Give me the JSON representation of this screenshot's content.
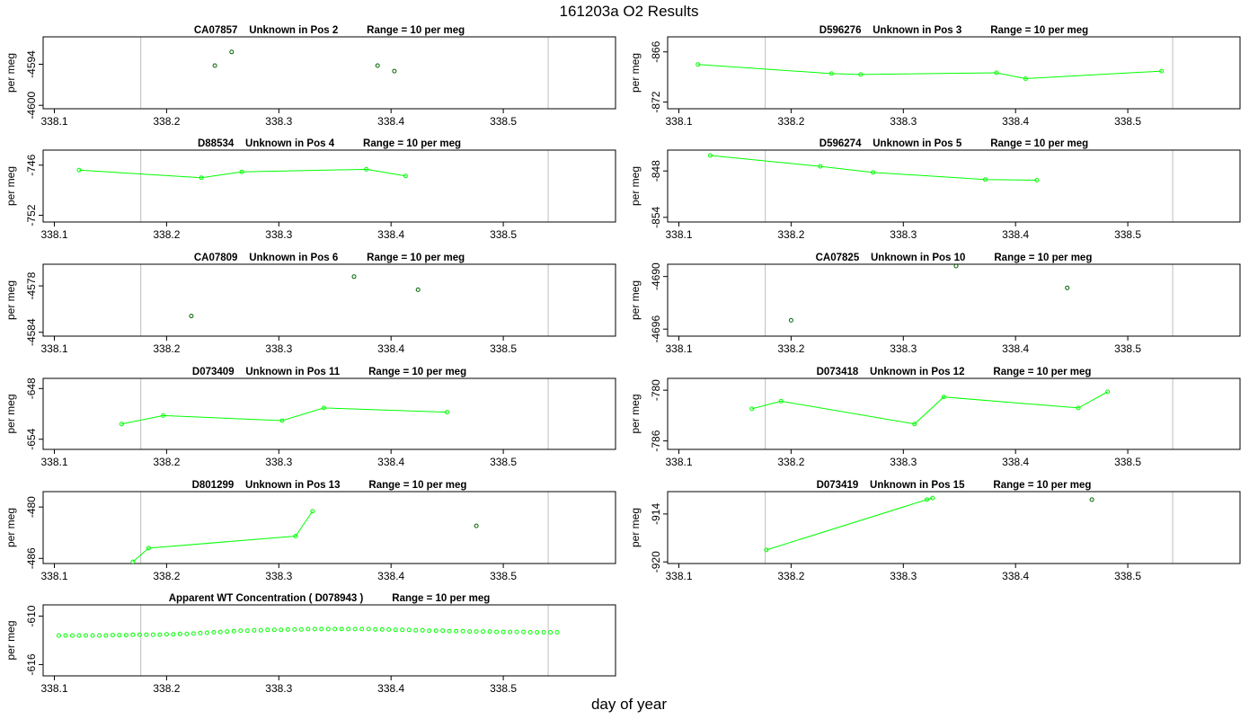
{
  "title": "161203a  O2 Results",
  "xlabel": "day of year",
  "colors": {
    "line": "#00ff00",
    "point_outlier": "#006400",
    "vline": "#bebebe",
    "frame": "#000000"
  },
  "chart_data": [
    {
      "type": "scatter",
      "title": "CA07857    Unknown in Pos 2          Range = 10 per meg",
      "ylabel": "per meg",
      "xlim": [
        338.09,
        338.6
      ],
      "ylim": [
        -4600.5,
        -4590
      ],
      "xticks": [
        "338.1",
        "338.2",
        "338.3",
        "338.4",
        "338.5"
      ],
      "yticks": [
        "-4594",
        "-4600"
      ],
      "vlines": [
        338.177,
        338.54
      ],
      "connected": false,
      "point_color": "dark",
      "x": [
        338.243,
        338.258,
        338.388,
        338.403
      ],
      "y": [
        -4594.2,
        -4592.2,
        -4594.2,
        -4595.0
      ]
    },
    {
      "type": "line",
      "title": "D596276    Unknown in Pos 3          Range = 10 per meg",
      "ylabel": "per meg",
      "xlim": [
        338.09,
        338.6
      ],
      "ylim": [
        -872.8,
        -864.2
      ],
      "xticks": [
        "338.1",
        "338.2",
        "338.3",
        "338.4",
        "338.5"
      ],
      "yticks": [
        "-866",
        "-872"
      ],
      "vlines": [
        338.177,
        338.54
      ],
      "connected": true,
      "x": [
        338.117,
        338.236,
        338.262,
        338.383,
        338.409,
        338.53
      ],
      "y": [
        -867.5,
        -868.6,
        -868.7,
        -868.5,
        -869.2,
        -868.3
      ]
    },
    {
      "type": "line",
      "title": "D88534    Unknown in Pos 4          Range = 10 per meg",
      "ylabel": "per meg",
      "xlim": [
        338.09,
        338.6
      ],
      "ylim": [
        -752.8,
        -744.2
      ],
      "xticks": [
        "338.1",
        "338.2",
        "338.3",
        "338.4",
        "338.5"
      ],
      "yticks": [
        "-746",
        "-752"
      ],
      "vlines": [
        338.177,
        338.54
      ],
      "connected": true,
      "x": [
        338.122,
        338.231,
        338.267,
        338.378,
        338.413
      ],
      "y": [
        -746.6,
        -747.5,
        -746.8,
        -746.5,
        -747.3
      ]
    },
    {
      "type": "line",
      "title": "D596274    Unknown in Pos 5          Range = 10 per meg",
      "ylabel": "per meg",
      "xlim": [
        338.09,
        338.6
      ],
      "ylim": [
        -854.6,
        -845.3
      ],
      "xticks": [
        "338.1",
        "338.2",
        "338.3",
        "338.4",
        "338.5"
      ],
      "yticks": [
        "-848",
        "-854"
      ],
      "vlines": [
        338.177,
        338.54
      ],
      "connected": true,
      "x": [
        338.128,
        338.226,
        338.273,
        338.373,
        338.419
      ],
      "y": [
        -846.0,
        -847.4,
        -848.2,
        -849.1,
        -849.2
      ]
    },
    {
      "type": "scatter",
      "title": "CA07809    Unknown in Pos 6          Range = 10 per meg",
      "ylabel": "per meg",
      "xlim": [
        338.09,
        338.6
      ],
      "ylim": [
        -4584.5,
        -4575.2
      ],
      "xticks": [
        "338.1",
        "338.2",
        "338.3",
        "338.4",
        "338.5"
      ],
      "yticks": [
        "-4578",
        "-4584"
      ],
      "vlines": [
        338.177,
        338.54
      ],
      "connected": false,
      "point_color": "dark",
      "x": [
        338.222,
        338.367,
        338.424
      ],
      "y": [
        -4581.9,
        -4576.8,
        -4578.5
      ]
    },
    {
      "type": "scatter",
      "title": "CA07825    Unknown in Pos 10          Range = 10 per meg",
      "ylabel": "per meg",
      "xlim": [
        338.09,
        338.6
      ],
      "ylim": [
        -4696.8,
        -4688.6
      ],
      "xticks": [
        "338.1",
        "338.2",
        "338.3",
        "338.4",
        "338.5"
      ],
      "yticks": [
        "-4690",
        "-4696"
      ],
      "vlines": [
        338.177,
        338.54
      ],
      "connected": false,
      "point_color": "dark",
      "x": [
        338.2,
        338.347,
        338.446
      ],
      "y": [
        -4695.0,
        -4688.8,
        -4691.3
      ]
    },
    {
      "type": "line",
      "title": "D073409    Unknown in Pos 11          Range = 10 per meg",
      "ylabel": "per meg",
      "xlim": [
        338.09,
        338.6
      ],
      "ylim": [
        -655.2,
        -646.8
      ],
      "xticks": [
        "338.1",
        "338.2",
        "338.3",
        "338.4",
        "338.5"
      ],
      "yticks": [
        "-648",
        "-654"
      ],
      "vlines": [
        338.177,
        338.54
      ],
      "connected": true,
      "x": [
        338.16,
        338.197,
        338.303,
        338.34,
        338.45
      ],
      "y": [
        -652.2,
        -651.2,
        -651.8,
        -650.3,
        -650.8
      ]
    },
    {
      "type": "line",
      "title": "D073418    Unknown in Pos 12          Range = 10 per meg",
      "ylabel": "per meg",
      "xlim": [
        338.09,
        338.6
      ],
      "ylim": [
        -787.0,
        -778.6
      ],
      "xticks": [
        "338.1",
        "338.2",
        "338.3",
        "338.4",
        "338.5"
      ],
      "yticks": [
        "-780",
        "-786"
      ],
      "vlines": [
        338.177,
        338.54
      ],
      "connected": true,
      "x": [
        338.165,
        338.191,
        338.31,
        338.336,
        338.456,
        338.482
      ],
      "y": [
        -782.2,
        -781.3,
        -784.0,
        -780.8,
        -782.1,
        -780.2
      ]
    },
    {
      "type": "line",
      "title": "D801299    Unknown in Pos 13          Range = 10 per meg",
      "ylabel": "per meg",
      "xlim": [
        338.09,
        338.6
      ],
      "ylim": [
        -486.6,
        -478.2
      ],
      "xticks": [
        "338.1",
        "338.2",
        "338.3",
        "338.4",
        "338.5"
      ],
      "yticks": [
        "-480",
        "-486"
      ],
      "vlines": [
        338.177,
        338.54
      ],
      "connected": true,
      "outlier_last": true,
      "x": [
        338.17,
        338.184,
        338.315,
        338.33,
        338.476
      ],
      "y": [
        -486.4,
        -484.8,
        -483.4,
        -480.5,
        -482.2
      ]
    },
    {
      "type": "line",
      "title": "D073419    Unknown in Pos 15          Range = 10 per meg",
      "ylabel": "per meg",
      "xlim": [
        338.09,
        338.6
      ],
      "ylim": [
        -920.2,
        -911.2
      ],
      "xticks": [
        "338.1",
        "338.2",
        "338.3",
        "338.4",
        "338.5"
      ],
      "yticks": [
        "-914",
        "-920"
      ],
      "vlines": [
        338.177,
        338.54
      ],
      "connected": true,
      "outlier_last": true,
      "x": [
        338.178,
        338.321,
        338.326,
        338.468
      ],
      "y": [
        -918.5,
        -912.2,
        -912.0,
        -912.2
      ]
    },
    {
      "type": "scatter",
      "title": "Apparent WT Concentration ( D078943 )          Range = 10 per meg",
      "ylabel": "per meg",
      "xlim": [
        338.09,
        338.6
      ],
      "ylim": [
        -617.4,
        -608.6
      ],
      "xticks": [
        "338.1",
        "338.2",
        "338.3",
        "338.4",
        "338.5"
      ],
      "yticks": [
        "-610",
        "-616"
      ],
      "vlines": [
        338.177,
        338.54
      ],
      "connected": false,
      "point_color": "green",
      "x_start": 338.104,
      "x_step": 0.006,
      "count": 75,
      "y": [
        -612.4,
        -612.4,
        -612.4,
        -612.4,
        -612.4,
        -612.4,
        -612.4,
        -612.4,
        -612.35,
        -612.35,
        -612.35,
        -612.3,
        -612.3,
        -612.3,
        -612.3,
        -612.3,
        -612.25,
        -612.25,
        -612.2,
        -612.2,
        -612.15,
        -612.1,
        -612.05,
        -612.0,
        -611.95,
        -611.9,
        -611.85,
        -611.8,
        -611.8,
        -611.75,
        -611.75,
        -611.7,
        -611.7,
        -611.7,
        -611.65,
        -611.65,
        -611.65,
        -611.6,
        -611.6,
        -611.6,
        -611.6,
        -611.6,
        -611.6,
        -611.6,
        -611.6,
        -611.6,
        -611.6,
        -611.65,
        -611.65,
        -611.65,
        -611.7,
        -611.7,
        -611.7,
        -611.75,
        -611.75,
        -611.8,
        -611.8,
        -611.8,
        -611.85,
        -611.85,
        -611.85,
        -611.9,
        -611.9,
        -611.9,
        -611.9,
        -611.95,
        -611.95,
        -611.95,
        -611.95,
        -611.95,
        -612.0,
        -612.0,
        -612.0,
        -612.0,
        -612.0
      ]
    }
  ]
}
